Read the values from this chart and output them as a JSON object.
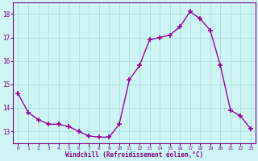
{
  "x": [
    0,
    1,
    2,
    3,
    4,
    5,
    6,
    7,
    8,
    9,
    10,
    11,
    12,
    13,
    14,
    15,
    16,
    17,
    18,
    19,
    20,
    21,
    22,
    23
  ],
  "y": [
    14.6,
    13.8,
    13.5,
    13.3,
    13.3,
    13.2,
    13.0,
    12.8,
    12.75,
    12.75,
    13.3,
    15.2,
    15.8,
    16.9,
    17.0,
    17.1,
    17.45,
    18.1,
    17.8,
    17.3,
    15.8,
    13.9,
    13.65,
    13.1
  ],
  "line_color": "#990099",
  "marker": "+",
  "marker_size": 4,
  "bg_color": "#cef5f5",
  "grid_color": "#aadddd",
  "xlabel": "Windchill (Refroidissement éolien,°C)",
  "xlabel_color": "#800080",
  "tick_color": "#800080",
  "ylim": [
    12.5,
    18.5
  ],
  "xlim": [
    -0.5,
    23.5
  ],
  "yticks": [
    13,
    14,
    15,
    16,
    17,
    18
  ],
  "xticks": [
    0,
    1,
    2,
    3,
    4,
    5,
    6,
    7,
    8,
    9,
    10,
    11,
    12,
    13,
    14,
    15,
    16,
    17,
    18,
    19,
    20,
    21,
    22,
    23
  ],
  "xtick_labels": [
    "0",
    "1",
    "2",
    "3",
    "4",
    "5",
    "6",
    "7",
    "8",
    "9",
    "10",
    "11",
    "12",
    "13",
    "14",
    "15",
    "16",
    "17",
    "18",
    "19",
    "20",
    "21",
    "22",
    "23"
  ]
}
